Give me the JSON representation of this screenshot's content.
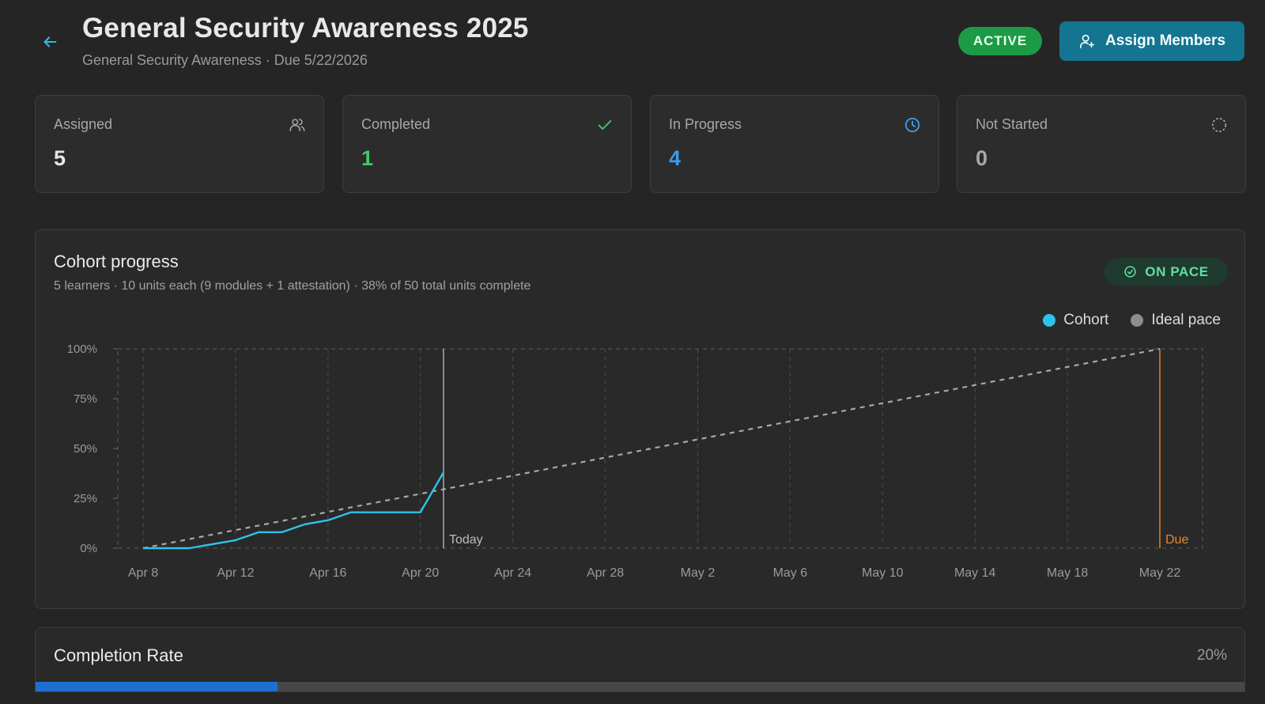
{
  "header": {
    "title": "General Security Awareness 2025",
    "subtitle": "General Security Awareness · Due 5/22/2026",
    "status": "ACTIVE",
    "assign_label": "Assign Members",
    "back_icon": "arrow-left-icon"
  },
  "colors": {
    "background": "#252525",
    "card": "#2c2c2c",
    "active_green": "#1c9a45",
    "completed_green": "#43c76b",
    "in_progress_blue": "#3d9be9",
    "cohort_line": "#2ec3ea",
    "ideal_line": "#a8a8a8",
    "due_line": "#e8892a",
    "progress_fill": "#1f6fd1",
    "assign_button": "#13758f"
  },
  "stats": [
    {
      "label": "Assigned",
      "value": "5",
      "icon": "users-icon"
    },
    {
      "label": "Completed",
      "value": "1",
      "icon": "check-icon"
    },
    {
      "label": "In Progress",
      "value": "4",
      "icon": "clock-icon"
    },
    {
      "label": "Not Started",
      "value": "0",
      "icon": "dashed-circle-icon"
    }
  ],
  "cohort": {
    "title": "Cohort progress",
    "subtitle": "5 learners · 10 units each (9 modules + 1 attestation) · 38% of 50 total units complete",
    "pace_badge": "ON PACE",
    "today_label": "Today",
    "due_label": "Due"
  },
  "chart_data": {
    "type": "line",
    "xlabel": "",
    "ylabel": "",
    "x_range": [
      "2026-04-08",
      "2026-05-22"
    ],
    "x_ticks": [
      "Apr 8",
      "Apr 12",
      "Apr 16",
      "Apr 20",
      "Apr 24",
      "Apr 28",
      "May 2",
      "May 6",
      "May 10",
      "May 14",
      "May 18",
      "May 22"
    ],
    "y_ticks": [
      "0%",
      "25%",
      "50%",
      "75%",
      "100%"
    ],
    "ylim": [
      0,
      100
    ],
    "grid": true,
    "legend_position": "top-right",
    "today": "2026-04-21",
    "due": "2026-05-22",
    "series": [
      {
        "name": "Cohort",
        "color": "#2ec3ea",
        "style": "solid",
        "points": [
          {
            "x": "2026-04-08",
            "y": 0
          },
          {
            "x": "2026-04-10",
            "y": 0
          },
          {
            "x": "2026-04-12",
            "y": 4
          },
          {
            "x": "2026-04-13",
            "y": 8
          },
          {
            "x": "2026-04-14",
            "y": 8
          },
          {
            "x": "2026-04-15",
            "y": 12
          },
          {
            "x": "2026-04-16",
            "y": 14
          },
          {
            "x": "2026-04-17",
            "y": 18
          },
          {
            "x": "2026-04-20",
            "y": 18
          },
          {
            "x": "2026-04-21",
            "y": 38
          }
        ]
      },
      {
        "name": "Ideal pace",
        "color": "#a8a8a8",
        "style": "dashed",
        "points": [
          {
            "x": "2026-04-08",
            "y": 0
          },
          {
            "x": "2026-05-22",
            "y": 100
          }
        ]
      }
    ]
  },
  "completion": {
    "title": "Completion Rate",
    "value_label": "20%",
    "value": 20
  }
}
